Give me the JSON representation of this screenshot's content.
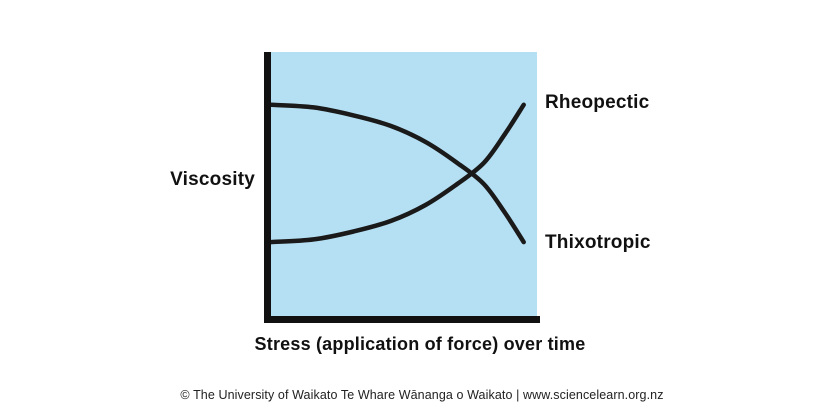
{
  "chart_data": {
    "type": "line",
    "title": "",
    "xlabel": "Stress (application of force) over time",
    "ylabel": "Viscosity",
    "x_axis": {
      "tick_labels": [],
      "range": "qualitative (no numeric scale shown)"
    },
    "y_axis": {
      "tick_labels": [],
      "range": "qualitative (no numeric scale shown)"
    },
    "grid": "off",
    "legend_position": "labels at right end of each curve",
    "plot_bg": "#b5e0f4",
    "axis_color": "#111111",
    "line_color": "#1a1a1a",
    "series": [
      {
        "name": "Rheopectic",
        "trend": "viscosity increases as stress is applied over time (slowly at first, then steeply)",
        "points": [
          [
            0.0,
            0.28
          ],
          [
            0.16,
            0.29
          ],
          [
            0.31,
            0.32
          ],
          [
            0.45,
            0.36
          ],
          [
            0.58,
            0.42
          ],
          [
            0.7,
            0.5
          ],
          [
            0.8,
            0.58
          ],
          [
            0.88,
            0.69
          ],
          [
            0.95,
            0.8
          ]
        ]
      },
      {
        "name": "Thixotropic",
        "trend": "viscosity decreases as stress is applied over time (slowly at first, then steeply)",
        "points": [
          [
            0.0,
            0.8
          ],
          [
            0.16,
            0.79
          ],
          [
            0.31,
            0.76
          ],
          [
            0.45,
            0.72
          ],
          [
            0.58,
            0.66
          ],
          [
            0.7,
            0.58
          ],
          [
            0.8,
            0.5
          ],
          [
            0.88,
            0.39
          ],
          [
            0.95,
            0.28
          ]
        ]
      }
    ],
    "annotations": {
      "crossing_point": [
        0.77,
        0.5
      ]
    }
  },
  "footer": {
    "copyright": "© The University of Waikato Te Whare Wānanga o Waikato | www.sciencelearn.org.nz"
  }
}
